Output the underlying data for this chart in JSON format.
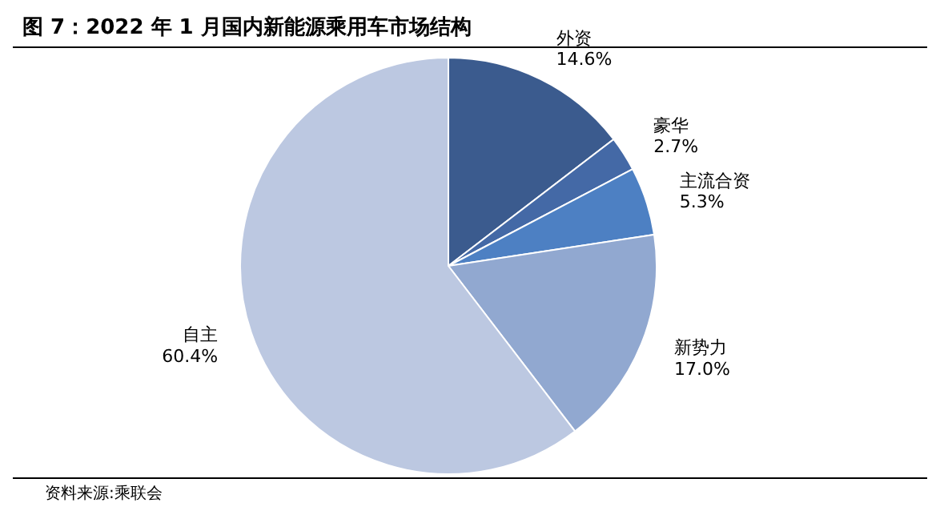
{
  "chart_data": {
    "type": "pie",
    "title": "图 7：2022 年 1 月国内新能源乘用车市场结构",
    "categories": [
      "外资",
      "豪华",
      "主流合资",
      "新势力",
      "自主"
    ],
    "values": [
      14.6,
      2.7,
      5.3,
      17.0,
      60.4
    ],
    "value_labels": [
      "14.6%",
      "2.7%",
      "5.3%",
      "17.0%",
      "60.4%"
    ],
    "colors": [
      "#3b5b8e",
      "#4469a6",
      "#4d80c3",
      "#91a8d0",
      "#bcc8e1"
    ],
    "annotations": [
      "资料来源:乘联会"
    ]
  }
}
